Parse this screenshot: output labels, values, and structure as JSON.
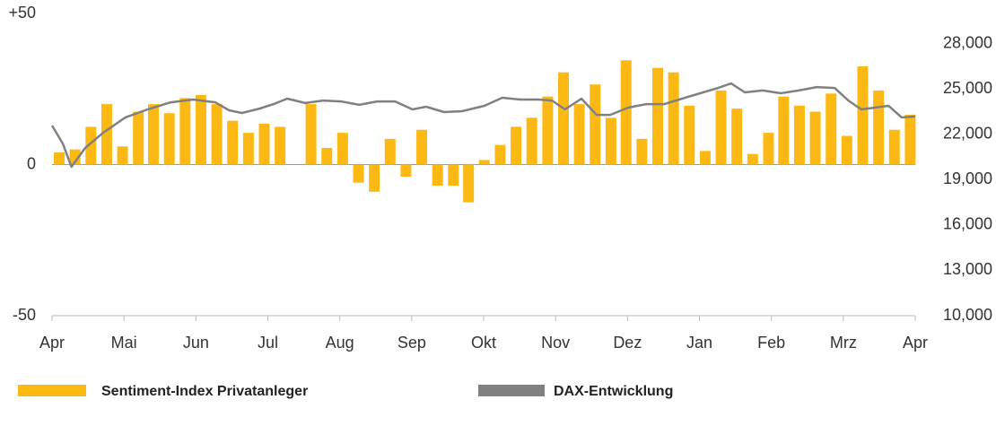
{
  "chart_data": {
    "type": "bar-line",
    "xlim": [
      0,
      12
    ],
    "xticks": [
      {
        "value": 0,
        "label": "Apr"
      },
      {
        "value": 1,
        "label": "Mai"
      },
      {
        "value": 2,
        "label": "Jun"
      },
      {
        "value": 3,
        "label": "Jul"
      },
      {
        "value": 4,
        "label": "Aug"
      },
      {
        "value": 5,
        "label": "Sep"
      },
      {
        "value": 6,
        "label": "Okt"
      },
      {
        "value": 7,
        "label": "Nov"
      },
      {
        "value": 8,
        "label": "Dez"
      },
      {
        "value": 9,
        "label": "Jan"
      },
      {
        "value": 10,
        "label": "Feb"
      },
      {
        "value": 11,
        "label": "Mrz"
      },
      {
        "value": 12,
        "label": "Apr"
      }
    ],
    "ylim": [
      -50,
      50
    ],
    "yticks": [
      -50,
      0,
      {
        "value": 50,
        "label": "+50"
      }
    ],
    "y2lim": [
      10000,
      30000
    ],
    "y2ticks": [
      {
        "value": 10000,
        "label": "10,000"
      },
      {
        "value": 13000,
        "label": "13,000"
      },
      {
        "value": 16000,
        "label": "16,000"
      },
      {
        "value": 19000,
        "label": "19,000"
      },
      {
        "value": 22000,
        "label": "22,000"
      },
      {
        "value": 25000,
        "label": "25,000"
      },
      {
        "value": 28000,
        "label": "28,000"
      }
    ],
    "grid": false,
    "series": [
      {
        "name": "Sentiment-Index Privatanleger",
        "type": "bar",
        "color": "#fdb913",
        "x": [
          0.1,
          0.32,
          0.54,
          0.76,
          0.98,
          1.2,
          1.41,
          1.63,
          1.85,
          2.07,
          2.29,
          2.51,
          2.73,
          2.95,
          3.17,
          3.39,
          3.6,
          3.82,
          4.04,
          4.26,
          4.48,
          4.7,
          4.92,
          5.14,
          5.36,
          5.58,
          5.79,
          6.01,
          6.23,
          6.45,
          6.67,
          6.89,
          7.11,
          7.33,
          7.55,
          7.77,
          7.98,
          8.2,
          8.42,
          8.64,
          8.86,
          9.08,
          9.3,
          9.52,
          9.74,
          9.96,
          10.17,
          10.39,
          10.61,
          10.83,
          11.05,
          11.27,
          11.49,
          11.71,
          11.93
        ],
        "values": [
          4,
          5,
          12.5,
          20,
          6,
          17.5,
          20,
          17,
          22,
          23,
          20,
          14.5,
          10.5,
          13.5,
          12.5,
          null,
          20,
          5.5,
          10.5,
          -6,
          -9,
          8.5,
          -4,
          11.5,
          -7,
          -7,
          -12.5,
          1.5,
          6.5,
          12.5,
          15.5,
          22.5,
          30.5,
          20,
          26.5,
          15.5,
          34.5,
          8.5,
          32,
          30.5,
          19.5,
          4.5,
          24.5,
          18.5,
          3.5,
          10.5,
          22.5,
          19.5,
          17.5,
          23.5,
          9.5,
          32.5,
          24.5,
          11.5,
          16.5
        ]
      },
      {
        "name": "DAX-Entwicklung",
        "type": "line",
        "axis": "y2",
        "color": "#808080",
        "x": [
          0,
          0.15,
          0.27,
          0.46,
          0.71,
          1.02,
          1.33,
          1.65,
          1.96,
          2.27,
          2.46,
          2.64,
          2.89,
          3.08,
          3.27,
          3.52,
          3.77,
          4.02,
          4.27,
          4.52,
          4.77,
          5.01,
          5.2,
          5.45,
          5.7,
          6.01,
          6.26,
          6.51,
          6.76,
          6.95,
          7.13,
          7.36,
          7.57,
          7.76,
          8.01,
          8.26,
          8.51,
          8.76,
          9.01,
          9.26,
          9.44,
          9.63,
          9.88,
          10.13,
          10.38,
          10.63,
          10.88,
          11.07,
          11.25,
          11.44,
          11.63,
          11.81,
          12
        ],
        "values": [
          22580,
          21390,
          19850,
          21100,
          22100,
          23120,
          23650,
          24120,
          24300,
          24120,
          23590,
          23410,
          23710,
          24000,
          24360,
          24070,
          24240,
          24180,
          23950,
          24180,
          24180,
          23650,
          23830,
          23470,
          23530,
          23890,
          24420,
          24300,
          24300,
          24240,
          23650,
          24360,
          23290,
          23290,
          23770,
          24000,
          24000,
          24360,
          24720,
          25070,
          25370,
          24780,
          24900,
          24720,
          24900,
          25130,
          25070,
          24240,
          23650,
          23770,
          23890,
          23120,
          23180
        ]
      }
    ]
  }
}
